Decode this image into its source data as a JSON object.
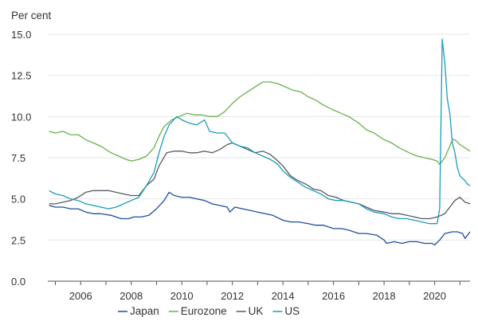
{
  "chart_data": {
    "type": "line",
    "ylabel": "Per cent",
    "ylim": [
      0,
      15
    ],
    "xlim": [
      2004.7,
      2021.4
    ],
    "yticks": [
      "0.0",
      "2.5",
      "5.0",
      "7.5",
      "10.0",
      "12.5",
      "15.0"
    ],
    "xticks": [
      "2006",
      "2008",
      "2010",
      "2012",
      "2014",
      "2016",
      "2018",
      "2020"
    ],
    "grid": "horizontal",
    "legend_position": "bottom",
    "series": [
      {
        "name": "Japan",
        "color": "#1f4e9a",
        "points": [
          [
            2004.75,
            4.6
          ],
          [
            2005.0,
            4.5
          ],
          [
            2005.3,
            4.5
          ],
          [
            2005.6,
            4.4
          ],
          [
            2005.9,
            4.4
          ],
          [
            2006.2,
            4.2
          ],
          [
            2006.5,
            4.1
          ],
          [
            2006.8,
            4.1
          ],
          [
            2007.2,
            4.0
          ],
          [
            2007.6,
            3.8
          ],
          [
            2007.9,
            3.8
          ],
          [
            2008.1,
            3.9
          ],
          [
            2008.4,
            3.9
          ],
          [
            2008.7,
            4.0
          ],
          [
            2009.0,
            4.4
          ],
          [
            2009.3,
            4.9
          ],
          [
            2009.5,
            5.4
          ],
          [
            2009.7,
            5.2
          ],
          [
            2010.0,
            5.1
          ],
          [
            2010.3,
            5.1
          ],
          [
            2010.6,
            5.0
          ],
          [
            2010.9,
            4.9
          ],
          [
            2011.2,
            4.7
          ],
          [
            2011.5,
            4.6
          ],
          [
            2011.8,
            4.5
          ],
          [
            2011.9,
            4.2
          ],
          [
            2012.1,
            4.5
          ],
          [
            2012.4,
            4.4
          ],
          [
            2012.7,
            4.3
          ],
          [
            2013.0,
            4.2
          ],
          [
            2013.3,
            4.1
          ],
          [
            2013.6,
            4.0
          ],
          [
            2014.0,
            3.7
          ],
          [
            2014.3,
            3.6
          ],
          [
            2014.6,
            3.6
          ],
          [
            2015.0,
            3.5
          ],
          [
            2015.3,
            3.4
          ],
          [
            2015.6,
            3.4
          ],
          [
            2016.0,
            3.2
          ],
          [
            2016.3,
            3.2
          ],
          [
            2016.6,
            3.1
          ],
          [
            2017.0,
            2.9
          ],
          [
            2017.3,
            2.9
          ],
          [
            2017.7,
            2.8
          ],
          [
            2018.0,
            2.5
          ],
          [
            2018.1,
            2.3
          ],
          [
            2018.4,
            2.4
          ],
          [
            2018.7,
            2.3
          ],
          [
            2019.0,
            2.4
          ],
          [
            2019.3,
            2.4
          ],
          [
            2019.6,
            2.3
          ],
          [
            2019.9,
            2.3
          ],
          [
            2020.0,
            2.2
          ],
          [
            2020.2,
            2.5
          ],
          [
            2020.4,
            2.9
          ],
          [
            2020.7,
            3.0
          ],
          [
            2020.9,
            3.0
          ],
          [
            2021.1,
            2.9
          ],
          [
            2021.2,
            2.6
          ],
          [
            2021.4,
            3.0
          ]
        ]
      },
      {
        "name": "Eurozone",
        "color": "#6ab04c",
        "points": [
          [
            2004.75,
            9.1
          ],
          [
            2005.0,
            9.0
          ],
          [
            2005.3,
            9.1
          ],
          [
            2005.6,
            8.9
          ],
          [
            2005.9,
            8.9
          ],
          [
            2006.2,
            8.6
          ],
          [
            2006.5,
            8.4
          ],
          [
            2006.8,
            8.2
          ],
          [
            2007.2,
            7.8
          ],
          [
            2007.5,
            7.6
          ],
          [
            2007.8,
            7.4
          ],
          [
            2008.0,
            7.3
          ],
          [
            2008.3,
            7.4
          ],
          [
            2008.6,
            7.6
          ],
          [
            2008.9,
            8.1
          ],
          [
            2009.1,
            8.8
          ],
          [
            2009.3,
            9.4
          ],
          [
            2009.6,
            9.8
          ],
          [
            2009.9,
            10.0
          ],
          [
            2010.2,
            10.2
          ],
          [
            2010.5,
            10.1
          ],
          [
            2010.8,
            10.1
          ],
          [
            2011.1,
            10.0
          ],
          [
            2011.4,
            10.0
          ],
          [
            2011.7,
            10.3
          ],
          [
            2012.0,
            10.8
          ],
          [
            2012.3,
            11.2
          ],
          [
            2012.6,
            11.5
          ],
          [
            2012.9,
            11.8
          ],
          [
            2013.2,
            12.1
          ],
          [
            2013.5,
            12.1
          ],
          [
            2013.8,
            12.0
          ],
          [
            2014.1,
            11.8
          ],
          [
            2014.4,
            11.6
          ],
          [
            2014.7,
            11.5
          ],
          [
            2015.0,
            11.2
          ],
          [
            2015.3,
            11.0
          ],
          [
            2015.6,
            10.7
          ],
          [
            2016.0,
            10.4
          ],
          [
            2016.3,
            10.2
          ],
          [
            2016.6,
            10.0
          ],
          [
            2017.0,
            9.6
          ],
          [
            2017.3,
            9.2
          ],
          [
            2017.6,
            9.0
          ],
          [
            2018.0,
            8.6
          ],
          [
            2018.3,
            8.4
          ],
          [
            2018.6,
            8.1
          ],
          [
            2019.0,
            7.8
          ],
          [
            2019.3,
            7.6
          ],
          [
            2019.6,
            7.5
          ],
          [
            2019.9,
            7.4
          ],
          [
            2020.1,
            7.3
          ],
          [
            2020.2,
            7.1
          ],
          [
            2020.4,
            7.5
          ],
          [
            2020.6,
            8.2
          ],
          [
            2020.7,
            8.6
          ],
          [
            2020.8,
            8.6
          ],
          [
            2021.0,
            8.3
          ],
          [
            2021.2,
            8.1
          ],
          [
            2021.4,
            7.9
          ]
        ]
      },
      {
        "name": "UK",
        "color": "#555a64",
        "points": [
          [
            2004.75,
            4.7
          ],
          [
            2005.0,
            4.7
          ],
          [
            2005.3,
            4.8
          ],
          [
            2005.6,
            4.9
          ],
          [
            2005.9,
            5.1
          ],
          [
            2006.2,
            5.4
          ],
          [
            2006.5,
            5.5
          ],
          [
            2006.8,
            5.5
          ],
          [
            2007.1,
            5.5
          ],
          [
            2007.4,
            5.4
          ],
          [
            2007.7,
            5.3
          ],
          [
            2008.0,
            5.2
          ],
          [
            2008.3,
            5.2
          ],
          [
            2008.6,
            5.8
          ],
          [
            2008.9,
            6.2
          ],
          [
            2009.1,
            7.0
          ],
          [
            2009.4,
            7.8
          ],
          [
            2009.7,
            7.9
          ],
          [
            2010.0,
            7.9
          ],
          [
            2010.3,
            7.8
          ],
          [
            2010.6,
            7.8
          ],
          [
            2010.9,
            7.9
          ],
          [
            2011.2,
            7.8
          ],
          [
            2011.5,
            8.0
          ],
          [
            2011.8,
            8.3
          ],
          [
            2012.0,
            8.4
          ],
          [
            2012.3,
            8.2
          ],
          [
            2012.6,
            8.0
          ],
          [
            2012.9,
            7.8
          ],
          [
            2013.2,
            7.9
          ],
          [
            2013.5,
            7.7
          ],
          [
            2013.8,
            7.3
          ],
          [
            2014.0,
            7.0
          ],
          [
            2014.3,
            6.4
          ],
          [
            2014.6,
            6.1
          ],
          [
            2014.9,
            5.9
          ],
          [
            2015.2,
            5.6
          ],
          [
            2015.5,
            5.5
          ],
          [
            2015.8,
            5.2
          ],
          [
            2016.1,
            5.1
          ],
          [
            2016.4,
            4.9
          ],
          [
            2016.7,
            4.8
          ],
          [
            2017.0,
            4.7
          ],
          [
            2017.3,
            4.5
          ],
          [
            2017.6,
            4.3
          ],
          [
            2018.0,
            4.2
          ],
          [
            2018.3,
            4.1
          ],
          [
            2018.6,
            4.1
          ],
          [
            2018.9,
            4.0
          ],
          [
            2019.2,
            3.9
          ],
          [
            2019.5,
            3.8
          ],
          [
            2019.8,
            3.8
          ],
          [
            2020.1,
            3.9
          ],
          [
            2020.4,
            4.1
          ],
          [
            2020.6,
            4.5
          ],
          [
            2020.8,
            4.9
          ],
          [
            2021.0,
            5.1
          ],
          [
            2021.2,
            4.8
          ],
          [
            2021.4,
            4.7
          ]
        ]
      },
      {
        "name": "US",
        "color": "#1c9bb8",
        "points": [
          [
            2004.75,
            5.5
          ],
          [
            2005.0,
            5.3
          ],
          [
            2005.3,
            5.2
          ],
          [
            2005.6,
            5.0
          ],
          [
            2005.9,
            4.9
          ],
          [
            2006.2,
            4.7
          ],
          [
            2006.5,
            4.6
          ],
          [
            2006.8,
            4.5
          ],
          [
            2007.1,
            4.4
          ],
          [
            2007.4,
            4.5
          ],
          [
            2007.7,
            4.7
          ],
          [
            2008.0,
            4.9
          ],
          [
            2008.3,
            5.1
          ],
          [
            2008.6,
            5.8
          ],
          [
            2008.9,
            6.6
          ],
          [
            2009.1,
            7.8
          ],
          [
            2009.3,
            8.8
          ],
          [
            2009.5,
            9.5
          ],
          [
            2009.8,
            10.0
          ],
          [
            2010.0,
            9.8
          ],
          [
            2010.3,
            9.6
          ],
          [
            2010.6,
            9.5
          ],
          [
            2010.9,
            9.8
          ],
          [
            2011.1,
            9.1
          ],
          [
            2011.4,
            9.0
          ],
          [
            2011.7,
            9.0
          ],
          [
            2012.0,
            8.4
          ],
          [
            2012.3,
            8.2
          ],
          [
            2012.6,
            8.1
          ],
          [
            2012.9,
            7.8
          ],
          [
            2013.2,
            7.6
          ],
          [
            2013.5,
            7.4
          ],
          [
            2013.8,
            7.1
          ],
          [
            2014.0,
            6.7
          ],
          [
            2014.3,
            6.3
          ],
          [
            2014.6,
            6.0
          ],
          [
            2014.9,
            5.7
          ],
          [
            2015.2,
            5.5
          ],
          [
            2015.5,
            5.3
          ],
          [
            2015.8,
            5.0
          ],
          [
            2016.1,
            4.9
          ],
          [
            2016.4,
            4.9
          ],
          [
            2016.7,
            4.8
          ],
          [
            2017.0,
            4.7
          ],
          [
            2017.3,
            4.4
          ],
          [
            2017.6,
            4.2
          ],
          [
            2018.0,
            4.1
          ],
          [
            2018.3,
            3.9
          ],
          [
            2018.6,
            3.8
          ],
          [
            2018.9,
            3.8
          ],
          [
            2019.2,
            3.7
          ],
          [
            2019.5,
            3.6
          ],
          [
            2019.8,
            3.5
          ],
          [
            2020.1,
            3.5
          ],
          [
            2020.2,
            4.4
          ],
          [
            2020.3,
            14.7
          ],
          [
            2020.4,
            13.3
          ],
          [
            2020.5,
            11.1
          ],
          [
            2020.6,
            10.2
          ],
          [
            2020.7,
            8.4
          ],
          [
            2020.8,
            7.8
          ],
          [
            2020.9,
            6.9
          ],
          [
            2021.0,
            6.4
          ],
          [
            2021.2,
            6.1
          ],
          [
            2021.3,
            5.9
          ],
          [
            2021.4,
            5.8
          ]
        ]
      }
    ]
  }
}
